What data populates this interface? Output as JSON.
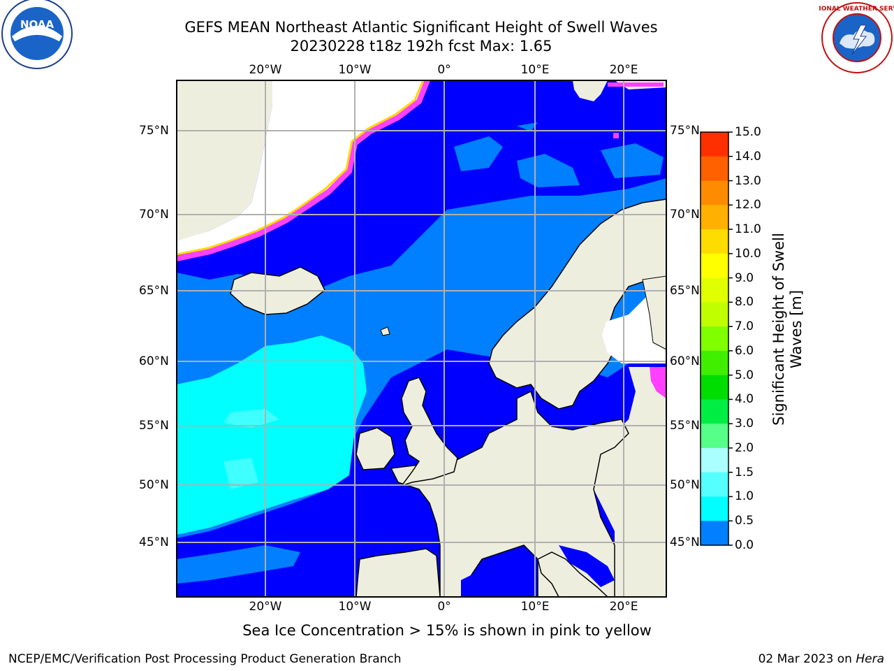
{
  "header": {
    "title_line1": "GEFS MEAN Northeast Atlantic Significant Height of Swell Waves",
    "title_line2": "20230228 t18z 192h fcst   Max: 1.65"
  },
  "logos": {
    "left": "NOAA",
    "right": "NATIONAL WEATHER SERVICE"
  },
  "map": {
    "lon_labels": [
      "20°W",
      "10°W",
      "0°",
      "10°E",
      "20°E"
    ],
    "lat_labels": [
      "75°N",
      "70°N",
      "65°N",
      "60°N",
      "55°N",
      "50°N",
      "45°N"
    ],
    "colors": {
      "ocean_low": "#0000ff",
      "ocean_mid": "#0080ff",
      "ocean_high": "#00ffff",
      "ocean_cyan2": "#40ffff",
      "land": "#eeeedf",
      "ice_white": "#ffffff",
      "ice_pink": "#ff40ff",
      "ice_yellow": "#ffd800",
      "grid": "#b0b0b0"
    }
  },
  "colorbar": {
    "label_line1": "Significant Height of Swell",
    "label_line2": "Waves [m]",
    "ticks": [
      "15.0",
      "14.0",
      "13.0",
      "12.0",
      "11.0",
      "10.0",
      "9.0",
      "8.0",
      "7.0",
      "6.0",
      "5.0",
      "4.0",
      "3.0",
      "2.0",
      "1.5",
      "1.0",
      "0.5",
      "0.0"
    ],
    "colors": [
      "#ff0000",
      "#ff3000",
      "#ff6000",
      "#ff8c00",
      "#ffb000",
      "#ffdc00",
      "#ffff00",
      "#e0ff00",
      "#c0ff00",
      "#80ff00",
      "#40ee00",
      "#00dd00",
      "#00ee44",
      "#55ff88",
      "#aaffff",
      "#55ffff",
      "#00ffff",
      "#0080ff",
      "#0000ff"
    ]
  },
  "caption": "Sea Ice Concentration > 15% is shown in pink to yellow",
  "footer": {
    "left": "NCEP/EMC/Verification Post Processing Product Generation Branch",
    "right_date": "02 Mar 2023 on ",
    "right_host": "Hera"
  }
}
